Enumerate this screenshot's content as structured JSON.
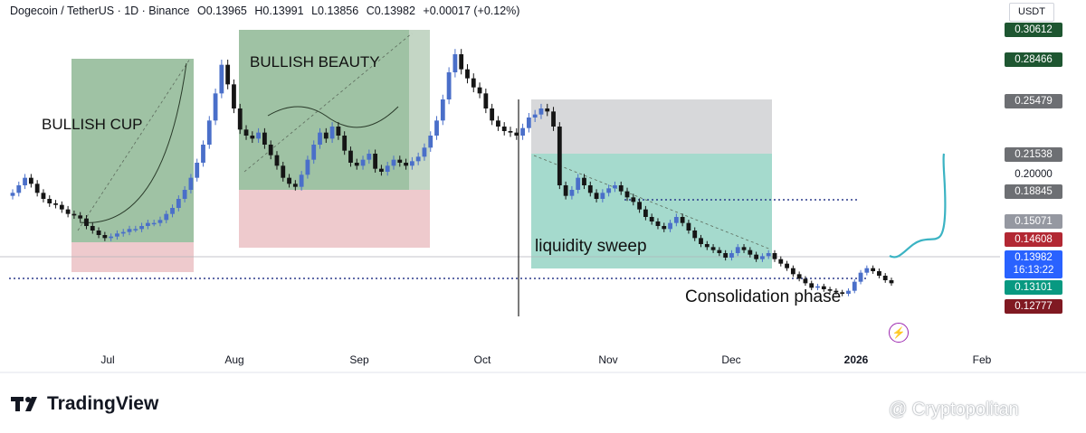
{
  "header": {
    "symbol": "Dogecoin / TetherUS · 1D · Binance",
    "open": "O0.13965",
    "high": "H0.13991",
    "low": "L0.13856",
    "close": "C0.13982",
    "change": "+0.00017 (+0.12%)"
  },
  "currency": "USDT",
  "chart_data": {
    "type": "candlestick",
    "x_ticks": [
      "Jul",
      "Aug",
      "Sep",
      "Oct",
      "Nov",
      "Dec",
      "2026",
      "Feb"
    ],
    "y_range": [
      0.1,
      0.31
    ],
    "price_tags": [
      {
        "label": "0.30612",
        "value": 0.30612,
        "bg": "#1e5631",
        "fg": "#ffffff"
      },
      {
        "label": "0.28466",
        "value": 0.28466,
        "bg": "#1e5631",
        "fg": "#ffffff"
      },
      {
        "label": "0.25479",
        "value": 0.25479,
        "bg": "#6d6f73",
        "fg": "#ffffff"
      },
      {
        "label": "0.21538",
        "value": 0.21538,
        "bg": "#6d6f73",
        "fg": "#ffffff"
      },
      {
        "label": "0.20000",
        "value": 0.2,
        "bg": "#ffffff",
        "fg": "#131722"
      },
      {
        "label": "0.18845",
        "value": 0.18845,
        "bg": "#6d6f73",
        "fg": "#ffffff"
      },
      {
        "label": "0.15071",
        "value": 0.15071,
        "bg": "#9598a1",
        "fg": "#ffffff"
      },
      {
        "label": "0.14608",
        "value": 0.14608,
        "bg": "#b22833",
        "fg": "#ffffff"
      },
      {
        "label": "0.13982",
        "value": 0.13982,
        "bg": "#2962ff",
        "fg": "#ffffff",
        "sub": "16:13:22"
      },
      {
        "label": "0.13101",
        "value": 0.13101,
        "bg": "#089981",
        "fg": "#ffffff"
      },
      {
        "label": "0.12777",
        "value": 0.12777,
        "bg": "#801922",
        "fg": "#ffffff"
      }
    ],
    "annotations": [
      "BULLISH CUP",
      "BULLISH BEAUTY",
      "liquidity sweep",
      "Consolidation phase"
    ],
    "colors": {
      "up": "#4a6fc9",
      "down": "#151515",
      "green_zone": "#7fae85",
      "red_zone": "#e8b8bc",
      "grey_zone": "#d3d4d6",
      "teal_zone": "#8fd1c1",
      "projection": "#3bb3c3"
    },
    "series": [
      {
        "name": "DOGE/USDT",
        "close": [
          0.2,
          0.205,
          0.21,
          0.206,
          0.2,
          0.196,
          0.193,
          0.192,
          0.189,
          0.186,
          0.185,
          0.183,
          0.178,
          0.175,
          0.172,
          0.17,
          0.171,
          0.173,
          0.174,
          0.176,
          0.176,
          0.178,
          0.18,
          0.18,
          0.182,
          0.186,
          0.19,
          0.196,
          0.202,
          0.21,
          0.22,
          0.232,
          0.248,
          0.266,
          0.285,
          0.272,
          0.256,
          0.242,
          0.238,
          0.236,
          0.24,
          0.232,
          0.225,
          0.218,
          0.21,
          0.206,
          0.204,
          0.212,
          0.222,
          0.232,
          0.24,
          0.236,
          0.244,
          0.238,
          0.228,
          0.22,
          0.218,
          0.222,
          0.226,
          0.216,
          0.214,
          0.218,
          0.222,
          0.22,
          0.218,
          0.221,
          0.224,
          0.23,
          0.238,
          0.248,
          0.262,
          0.28,
          0.292,
          0.282,
          0.276,
          0.27,
          0.266,
          0.256,
          0.248,
          0.244,
          0.241,
          0.24,
          0.238,
          0.243,
          0.25,
          0.252,
          0.256,
          0.254,
          0.244,
          0.205,
          0.198,
          0.202,
          0.21,
          0.205,
          0.2,
          0.196,
          0.2,
          0.203,
          0.205,
          0.201,
          0.197,
          0.194,
          0.189,
          0.184,
          0.181,
          0.178,
          0.176,
          0.18,
          0.184,
          0.18,
          0.175,
          0.17,
          0.166,
          0.164,
          0.162,
          0.16,
          0.157,
          0.16,
          0.164,
          0.162,
          0.159,
          0.156,
          0.158,
          0.16,
          0.156,
          0.153,
          0.15,
          0.146,
          0.143,
          0.14,
          0.137,
          0.138,
          0.136,
          0.135,
          0.134,
          0.133,
          0.135,
          0.141,
          0.147,
          0.15,
          0.148,
          0.145,
          0.142,
          0.14
        ]
      }
    ]
  },
  "watermark": "@ Cryptopolitan",
  "logo_text": "TradingView"
}
